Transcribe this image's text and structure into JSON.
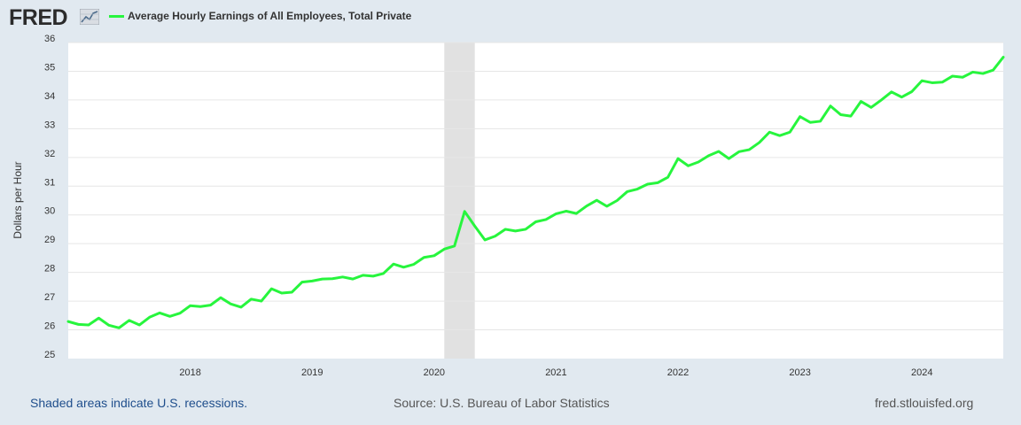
{
  "header": {
    "logo_text": "FRED",
    "logo_icon": "fred-chart-icon",
    "legend_label": "Average Hourly Earnings of All Employees, Total Private"
  },
  "colors": {
    "series": "#27f53d",
    "recession": "#e1e1e1",
    "background": "#e1e9f0",
    "plot": "#ffffff",
    "grid": "#e6e6e6",
    "link": "#1f4e8c"
  },
  "footer": {
    "recessions_note": "Shaded areas indicate U.S. recessions.",
    "source": "Source: U.S. Bureau of Labor Statistics",
    "site": "fred.stlouisfed.org"
  },
  "chart_data": {
    "type": "line",
    "title": "Average Hourly Earnings of All Employees, Total Private",
    "xlabel": "",
    "ylabel": "Dollars per Hour",
    "ylim": [
      25,
      36
    ],
    "xlim": [
      "2017-01",
      "2024-09"
    ],
    "grid": true,
    "yticks": [
      "25",
      "26",
      "27",
      "28",
      "29",
      "30",
      "31",
      "32",
      "33",
      "34",
      "35",
      "36"
    ],
    "xticks": [
      {
        "label": "2018",
        "date": "2018-01"
      },
      {
        "label": "2019",
        "date": "2019-01"
      },
      {
        "label": "2020",
        "date": "2020-01"
      },
      {
        "label": "2021",
        "date": "2021-01"
      },
      {
        "label": "2022",
        "date": "2022-01"
      },
      {
        "label": "2023",
        "date": "2023-01"
      },
      {
        "label": "2024",
        "date": "2024-01"
      }
    ],
    "recessions": [
      {
        "start": "2020-02",
        "end": "2020-04"
      }
    ],
    "series": [
      {
        "name": "Average Hourly Earnings of All Employees, Total Private",
        "start": "2017-01",
        "frequency": "monthly",
        "values": [
          26.29,
          26.19,
          26.17,
          26.41,
          26.16,
          26.07,
          26.33,
          26.17,
          26.44,
          26.59,
          26.47,
          26.58,
          26.84,
          26.81,
          26.86,
          27.12,
          26.9,
          26.79,
          27.07,
          27.0,
          27.43,
          27.28,
          27.31,
          27.66,
          27.7,
          27.77,
          27.78,
          27.84,
          27.77,
          27.9,
          27.87,
          27.96,
          28.29,
          28.18,
          28.28,
          28.52,
          28.58,
          28.81,
          28.92,
          30.12,
          29.61,
          29.13,
          29.26,
          29.5,
          29.44,
          29.5,
          29.76,
          29.84,
          30.04,
          30.13,
          30.05,
          30.31,
          30.51,
          30.3,
          30.5,
          30.81,
          30.9,
          31.07,
          31.12,
          31.31,
          31.96,
          31.71,
          31.84,
          32.06,
          32.21,
          31.96,
          32.2,
          32.27,
          32.52,
          32.88,
          32.76,
          32.88,
          33.42,
          33.22,
          33.26,
          33.79,
          33.49,
          33.44,
          33.95,
          33.74,
          34.0,
          34.28,
          34.1,
          34.29,
          34.67,
          34.6,
          34.62,
          34.83,
          34.79,
          34.97,
          34.92,
          35.04,
          35.49
        ]
      }
    ]
  }
}
